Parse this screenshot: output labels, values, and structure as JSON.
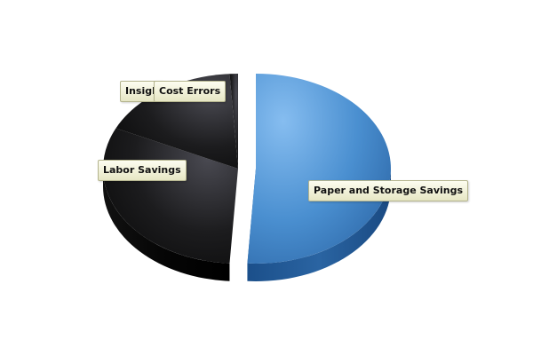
{
  "chart_data": {
    "type": "pie",
    "title": "",
    "style": "3d-exploded",
    "slices": [
      {
        "label": "Paper and Storage Savings",
        "value": 51,
        "color": "#4a8fd0"
      },
      {
        "label": "Labor Savings",
        "value": 31,
        "color": "#1c1c1e"
      },
      {
        "label": "Cost Errors",
        "value": 17,
        "color": "#2a2a2e"
      },
      {
        "label": "Insight",
        "value": 1,
        "color": "#2a2a2e"
      }
    ]
  }
}
